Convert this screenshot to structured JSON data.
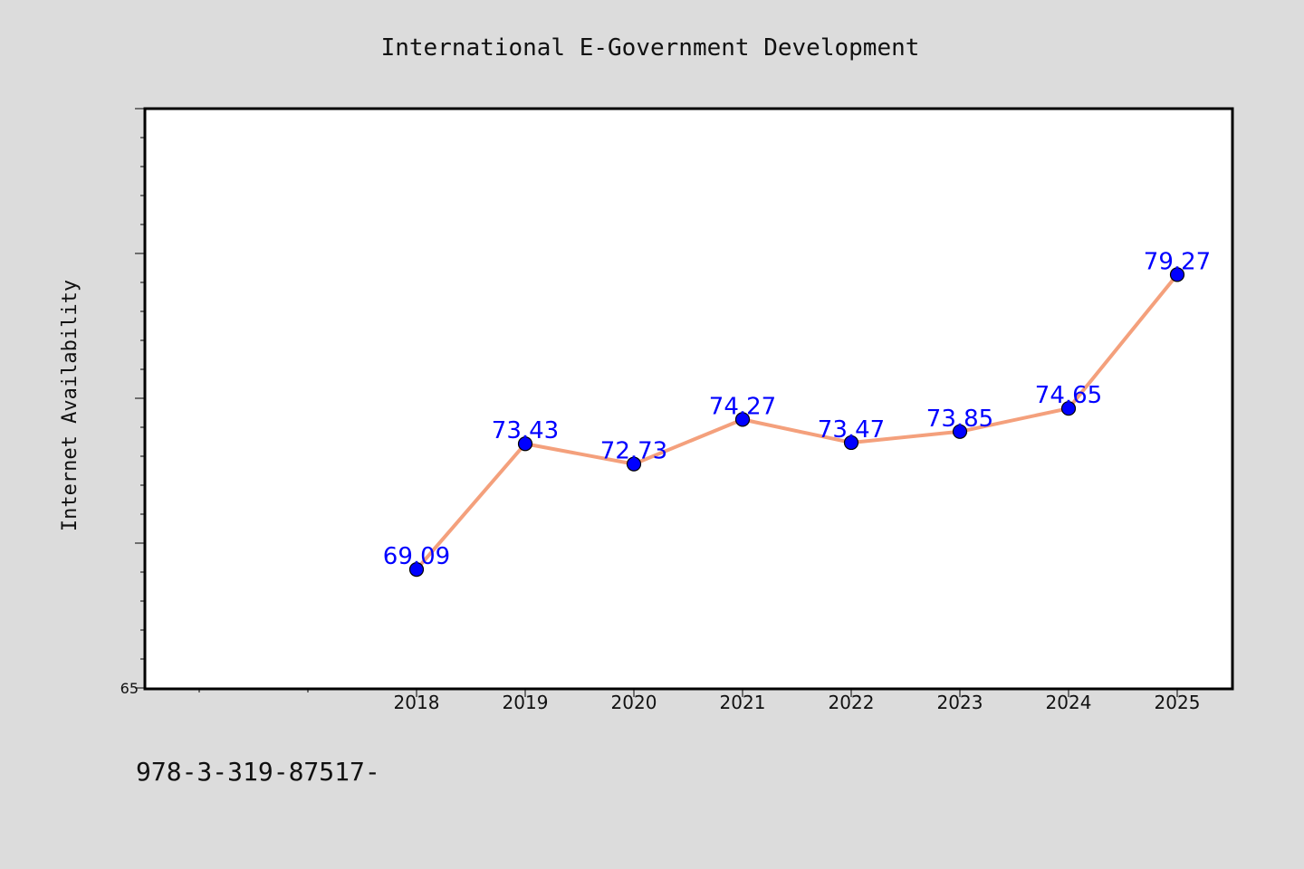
{
  "chart_data": {
    "type": "line",
    "title": "International E-Government Development",
    "xlabel": "",
    "ylabel": "Internet Availability",
    "categories": [
      "2018",
      "2019",
      "2020",
      "2021",
      "2022",
      "2023",
      "2024",
      "2025"
    ],
    "series": [
      {
        "values": [
          69.09,
          73.43,
          72.73,
          74.27,
          73.47,
          73.85,
          74.65,
          79.27
        ]
      }
    ],
    "ylim": [
      65,
      85
    ],
    "ytick_labels": [
      "65"
    ],
    "data_labels": [
      "69.09",
      "73.43",
      "72.73",
      "74.27",
      "73.47",
      "73.85",
      "74.65",
      "79.27"
    ],
    "grid": false,
    "legend": "none",
    "colors": {
      "line": "#f4a07c",
      "marker": "#0000ff",
      "label": "#0000ff"
    }
  },
  "footer": {
    "text": "978-3-319-87517-"
  }
}
